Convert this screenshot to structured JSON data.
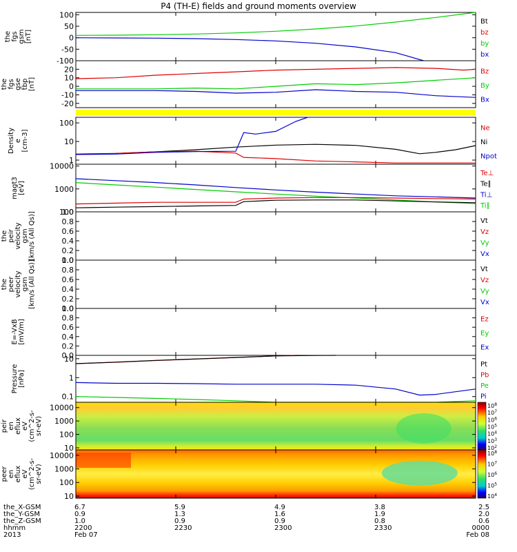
{
  "title": "P4 (TH-E) fields and ground moments overview",
  "colors": {
    "black": "#000000",
    "red": "#dd0000",
    "green": "#00cc00",
    "blue": "#0000cc",
    "yellow": "#ffff00"
  },
  "chart_data": [
    {
      "type": "line",
      "panel": "fgs_gsm",
      "ylabel": [
        "the",
        "fgs",
        "gsm",
        "[nT]"
      ],
      "ylim": [
        -100,
        110
      ],
      "yticks": [
        100,
        50,
        0,
        -50,
        -100
      ],
      "legend": [
        {
          "label": "Bt",
          "color": "black"
        },
        {
          "label": "bz",
          "color": "red"
        },
        {
          "label": "by",
          "color": "green"
        },
        {
          "label": "bx",
          "color": "blue"
        }
      ],
      "series": [
        {
          "name": "by",
          "color": "green",
          "x": [
            0,
            0.1,
            0.2,
            0.3,
            0.4,
            0.5,
            0.6,
            0.7,
            0.8,
            0.9,
            1.0
          ],
          "y": [
            10,
            11,
            13,
            16,
            21,
            28,
            38,
            51,
            68,
            88,
            110
          ]
        },
        {
          "name": "bx",
          "color": "blue",
          "x": [
            0,
            0.1,
            0.2,
            0.3,
            0.4,
            0.5,
            0.6,
            0.7,
            0.8,
            0.87
          ],
          "y": [
            0,
            -1,
            -2,
            -4,
            -8,
            -14,
            -24,
            -40,
            -65,
            -100
          ]
        }
      ]
    },
    {
      "type": "line",
      "panel": "fgs_gse",
      "ylabel": [
        "the",
        "fgs",
        "gse",
        "tbp",
        "[nT]"
      ],
      "ylim": [
        -25,
        30
      ],
      "yticks": [
        20,
        10,
        0,
        -10,
        -20
      ],
      "legend": [
        {
          "label": "Bz",
          "color": "red"
        },
        {
          "label": "By",
          "color": "green"
        },
        {
          "label": "Bx",
          "color": "blue"
        }
      ],
      "series": [
        {
          "name": "Bz",
          "color": "red",
          "x": [
            0,
            0.1,
            0.2,
            0.3,
            0.4,
            0.5,
            0.6,
            0.7,
            0.8,
            0.9,
            0.97,
            1.0
          ],
          "y": [
            9,
            10,
            13,
            15,
            17,
            19,
            20,
            21,
            22,
            21,
            19,
            20
          ]
        },
        {
          "name": "By",
          "color": "green",
          "x": [
            0,
            0.1,
            0.2,
            0.3,
            0.4,
            0.5,
            0.6,
            0.7,
            0.8,
            0.9,
            1.0
          ],
          "y": [
            -3,
            -3,
            -3,
            -2,
            -3,
            0,
            3,
            2,
            4,
            7,
            10
          ]
        },
        {
          "name": "Bx",
          "color": "blue",
          "x": [
            0,
            0.1,
            0.2,
            0.3,
            0.4,
            0.5,
            0.6,
            0.7,
            0.8,
            0.9,
            1.0
          ],
          "y": [
            -5,
            -5,
            -5,
            -6,
            -8,
            -7,
            -4,
            -6,
            -7,
            -11,
            -13
          ]
        }
      ]
    },
    {
      "type": "line",
      "panel": "density",
      "ylabel": [
        "Density",
        "e",
        "[cm-3]"
      ],
      "scale": "log",
      "ylim": [
        0.6,
        200
      ],
      "yticks": [
        100,
        10,
        1
      ],
      "legend": [
        {
          "label": "Ne",
          "color": "red"
        },
        {
          "label": "Ni",
          "color": "black"
        },
        {
          "label": "Npot",
          "color": "blue"
        }
      ],
      "series": [
        {
          "name": "Ni",
          "color": "black",
          "x": [
            0,
            0.1,
            0.2,
            0.3,
            0.4,
            0.5,
            0.6,
            0.7,
            0.8,
            0.86,
            0.9,
            0.95,
            1.0
          ],
          "y": [
            2.1,
            2.3,
            2.8,
            3.6,
            5.0,
            6.4,
            7.0,
            6.2,
            3.8,
            2.2,
            2.6,
            3.6,
            6.0
          ]
        },
        {
          "name": "Ne",
          "color": "red",
          "x": [
            0,
            0.1,
            0.2,
            0.3,
            0.4,
            0.42,
            0.5,
            0.6,
            0.7,
            0.8,
            0.9,
            1.0
          ],
          "y": [
            2.0,
            2.3,
            2.8,
            3.0,
            2.4,
            1.4,
            1.2,
            0.9,
            0.8,
            0.7,
            0.7,
            0.7
          ]
        },
        {
          "name": "Npot",
          "color": "blue",
          "x": [
            0,
            0.1,
            0.2,
            0.3,
            0.4,
            0.42,
            0.45,
            0.5,
            0.55,
            0.58
          ],
          "y": [
            2.0,
            2.1,
            2.6,
            2.9,
            3.0,
            30,
            25,
            35,
            120,
            200
          ]
        }
      ]
    },
    {
      "type": "line",
      "panel": "temperature",
      "ylabel": [
        "magt3",
        "[eV]"
      ],
      "scale": "log",
      "ylim": [
        100,
        12000
      ],
      "yticks": [
        10000,
        1000,
        100
      ],
      "legend": [
        {
          "label": "Te⊥",
          "color": "red"
        },
        {
          "label": "Te∥",
          "color": "black"
        },
        {
          "label": "Ti⊥",
          "color": "blue"
        },
        {
          "label": "Ti∥",
          "color": "green"
        }
      ],
      "series": [
        {
          "name": "Ti⊥",
          "color": "blue",
          "x": [
            0,
            0.1,
            0.2,
            0.3,
            0.4,
            0.5,
            0.6,
            0.7,
            0.8,
            0.9,
            1.0
          ],
          "y": [
            2800,
            2300,
            1900,
            1500,
            1150,
            900,
            720,
            600,
            500,
            450,
            400
          ]
        },
        {
          "name": "Ti∥",
          "color": "green",
          "x": [
            0,
            0.1,
            0.2,
            0.3,
            0.4,
            0.5,
            0.6,
            0.7,
            0.8,
            0.9,
            1.0
          ],
          "y": [
            1900,
            1500,
            1200,
            950,
            750,
            600,
            480,
            400,
            330,
            270,
            230
          ]
        },
        {
          "name": "Te⊥",
          "color": "red",
          "x": [
            0,
            0.1,
            0.2,
            0.3,
            0.4,
            0.42,
            0.5,
            0.6,
            0.7,
            0.8,
            0.9,
            1.0
          ],
          "y": [
            220,
            240,
            260,
            260,
            260,
            360,
            400,
            420,
            420,
            400,
            380,
            360
          ]
        },
        {
          "name": "Te∥",
          "color": "black",
          "x": [
            0,
            0.1,
            0.2,
            0.3,
            0.4,
            0.42,
            0.5,
            0.6,
            0.7,
            0.8,
            0.9,
            1.0
          ],
          "y": [
            150,
            160,
            170,
            180,
            190,
            280,
            320,
            330,
            330,
            300,
            270,
            250
          ]
        }
      ]
    },
    {
      "type": "line",
      "panel": "peir_velocity",
      "ylabel": [
        "the",
        "peir",
        "velocity",
        "gsm",
        "[km/s (All Qs)]"
      ],
      "ylim": [
        0,
        1
      ],
      "yticks": [
        1.0,
        0.8,
        0.6,
        0.4,
        0.2,
        0.0
      ],
      "legend": [
        {
          "label": "Vt",
          "color": "black"
        },
        {
          "label": "Vz",
          "color": "red"
        },
        {
          "label": "Vy",
          "color": "green"
        },
        {
          "label": "Vx",
          "color": "blue"
        }
      ],
      "series": []
    },
    {
      "type": "line",
      "panel": "peer_velocity",
      "ylabel": [
        "the",
        "peer",
        "velocity",
        "gsm",
        "[km/s (All Qs)]"
      ],
      "ylim": [
        0,
        1
      ],
      "yticks": [
        1.0,
        0.8,
        0.6,
        0.4,
        0.2,
        0.0
      ],
      "legend": [
        {
          "label": "Vt",
          "color": "black"
        },
        {
          "label": "Vz",
          "color": "red"
        },
        {
          "label": "Vy",
          "color": "green"
        },
        {
          "label": "Vx",
          "color": "blue"
        }
      ],
      "series": []
    },
    {
      "type": "line",
      "panel": "efield",
      "ylabel": [
        "E=-VxB",
        "[mV/m]"
      ],
      "ylim": [
        0,
        1
      ],
      "yticks": [
        1.0,
        0.8,
        0.6,
        0.4,
        0.2,
        0.0
      ],
      "legend": [
        {
          "label": "Ez",
          "color": "red"
        },
        {
          "label": "Ey",
          "color": "green"
        },
        {
          "label": "Ex",
          "color": "blue"
        }
      ],
      "series": []
    },
    {
      "type": "line",
      "panel": "pressure",
      "ylabel": [
        "Pressure",
        "[nPa]"
      ],
      "scale": "log",
      "ylim": [
        0.05,
        15
      ],
      "yticks": [
        10.0,
        1.0,
        0.1
      ],
      "legend": [
        {
          "label": "Pt",
          "color": "black"
        },
        {
          "label": "Pb",
          "color": "red"
        },
        {
          "label": "Pe",
          "color": "green"
        },
        {
          "label": "Pi",
          "color": "blue"
        }
      ],
      "series": [
        {
          "name": "Pb",
          "color": "red",
          "x": [
            0,
            0.1,
            0.2,
            0.3,
            0.4,
            0.5,
            0.55
          ],
          "y": [
            5.5,
            6.5,
            8.0,
            9.5,
            11.5,
            14.0,
            15
          ]
        },
        {
          "name": "Pt",
          "color": "black",
          "x": [
            0,
            0.1,
            0.2,
            0.3,
            0.4,
            0.5,
            0.6,
            0.65
          ],
          "y": [
            5.5,
            6.6,
            8.1,
            9.7,
            11.7,
            14.0,
            14.8,
            15
          ]
        },
        {
          "name": "Pi",
          "color": "blue",
          "x": [
            0,
            0.1,
            0.2,
            0.3,
            0.4,
            0.5,
            0.6,
            0.7,
            0.8,
            0.86,
            0.9,
            0.95,
            1.0
          ],
          "y": [
            0.55,
            0.5,
            0.5,
            0.48,
            0.45,
            0.45,
            0.45,
            0.4,
            0.25,
            0.12,
            0.13,
            0.18,
            0.25
          ]
        },
        {
          "name": "Pe",
          "color": "green",
          "x": [
            0,
            0.1,
            0.2,
            0.3,
            0.4,
            0.5,
            0.6,
            0.7,
            0.8,
            0.9,
            1.0
          ],
          "y": [
            0.1,
            0.09,
            0.08,
            0.07,
            0.06,
            0.05,
            0.05,
            0.05,
            0.05,
            0.05,
            0.06
          ]
        }
      ]
    },
    {
      "type": "heatmap",
      "panel": "peir_eflux",
      "ylabel": [
        "the",
        "peir",
        "en",
        "eflux",
        "eV",
        "(cm^2-s-",
        "sr-eV)"
      ],
      "scale": "log",
      "ylim": [
        7,
        25000
      ],
      "yticks": [
        10000,
        1000,
        100,
        10
      ],
      "colorbar_ticks": [
        "10^8",
        "10^7",
        "10^6",
        "10^5",
        "10^4",
        "10^3",
        "10^2"
      ],
      "description": "yellow/green energy flux, green band lower energies, yellow above ~1000 eV"
    },
    {
      "type": "heatmap",
      "panel": "peer_eflux",
      "ylabel": [
        "the",
        "peer",
        "en",
        "eflux",
        "eV",
        "(cm^2-s-",
        "sr-eV)"
      ],
      "scale": "log",
      "ylim": [
        7,
        25000
      ],
      "yticks": [
        10000,
        1000,
        100,
        10
      ],
      "colorbar_ticks": [
        "10^8",
        "10^7",
        "10^6",
        "10^5",
        "10^4"
      ],
      "description": "red/orange intense flux at top-left and bottom, green patch near right"
    }
  ],
  "xaxis": {
    "rows": [
      {
        "label": "the_X-GSM",
        "values": [
          "6.7",
          "5.9",
          "4.9",
          "3.8",
          "2.5"
        ]
      },
      {
        "label": "the_Y-GSM",
        "values": [
          "0.9",
          "1.3",
          "1.6",
          "1.9",
          "2.0"
        ]
      },
      {
        "label": "the_Z-GSM",
        "values": [
          "1.0",
          "0.9",
          "0.9",
          "0.8",
          "0.6"
        ]
      },
      {
        "label": "hhmm",
        "values": [
          "2200",
          "2230",
          "2300",
          "2330",
          "0000"
        ]
      },
      {
        "label": "2013",
        "values": [
          "Feb 07",
          "",
          "",
          "",
          "Feb 08"
        ]
      }
    ]
  }
}
